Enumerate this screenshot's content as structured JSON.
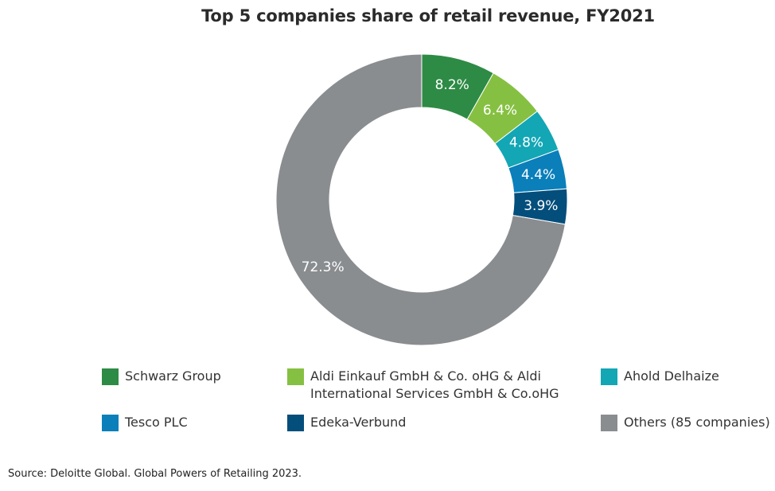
{
  "chart_data": {
    "type": "pie",
    "subtype": "donut",
    "title": "Top 5 companies share of retail revenue, FY2021",
    "categories": [
      "Schwarz Group",
      "Aldi Einkauf GmbH & Co. oHG & Aldi International Services GmbH & Co.oHG",
      "Ahold Delhaize",
      "Tesco PLC",
      "Edeka-Verbund",
      "Others (85 companies)"
    ],
    "values": [
      8.2,
      6.4,
      4.8,
      4.4,
      3.9,
      72.3
    ],
    "value_labels": [
      "8.2%",
      "6.4%",
      "4.8%",
      "4.4%",
      "3.9%",
      "72.3%"
    ],
    "colors": [
      "#2e8b45",
      "#86c042",
      "#13a6b5",
      "#0a7fba",
      "#044e7c",
      "#8a8d90"
    ],
    "legend": {
      "position": "bottom",
      "entries": [
        {
          "label": "Schwarz Group",
          "line1": "Schwarz Group",
          "line2": ""
        },
        {
          "label": "Aldi Einkauf GmbH & Co. oHG & Aldi International Services GmbH & Co.oHG",
          "line1": "Aldi Einkauf GmbH & Co. oHG & Aldi",
          "line2": "International Services GmbH & Co.oHG"
        },
        {
          "label": "Ahold Delhaize",
          "line1": "Ahold Delhaize",
          "line2": ""
        },
        {
          "label": "Tesco PLC",
          "line1": "Tesco PLC",
          "line2": ""
        },
        {
          "label": "Edeka-Verbund",
          "line1": "Edeka-Verbund",
          "line2": ""
        },
        {
          "label": "Others (85 companies)",
          "line1": "Others (85 companies)",
          "line2": ""
        }
      ]
    }
  },
  "source": "Source: Deloitte Global. Global Powers of Retailing 2023."
}
